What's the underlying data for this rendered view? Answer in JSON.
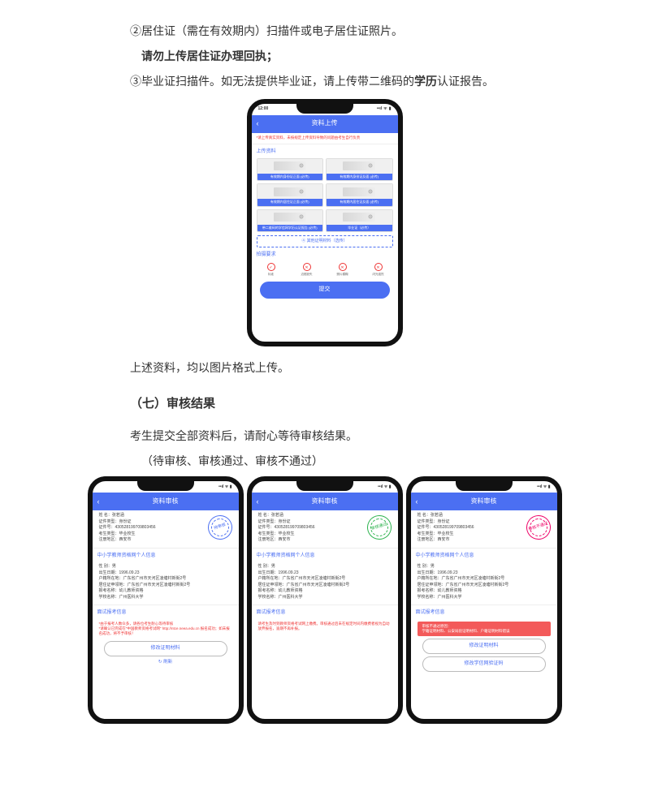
{
  "doc": {
    "line1_prefix": "②居住证（需在有效期内）扫描件或电子居住证照片。",
    "line2_bold": "请勿上传居住证办理回执；",
    "line3_a": "③毕业证扫描件。如无法提供毕业证，请上传带二维码的",
    "line3_b": "学历",
    "line3_c": "认证报告。",
    "after_phone": "上述资料，均以图片格式上传。",
    "heading7": "（七）审核结果",
    "line4": "考生提交全部资料后，请耐心等待审核结果。",
    "line5": "（待审核、审核通过、审核不通过）"
  },
  "upload_phone": {
    "time": "12:00",
    "title": "资料上传",
    "warn": "*请上传真实资料，未按规定上传资料导致的问题由考生自行负责",
    "sec1": "上传资料",
    "cells": [
      "有效期内身份证正面 (必传)",
      "有效期内身份证反面 (必传)",
      "有效期内居住证正面 (必传)",
      "有效期内居住证反面 (必传)",
      "带二维码的学信网学历认证报告 (必传)",
      "毕业证（必传）"
    ],
    "link": "④ 其他证明材料（选传）",
    "sec2": "拍摄要求",
    "icons": [
      "标准",
      "边框缺失",
      "照片模糊",
      "闪光强烈"
    ],
    "submit": "提交"
  },
  "review": {
    "title": "资料审核",
    "base_label_name": "姓    名：",
    "base_name": "张若涵",
    "base_label_idtype": "证件类型：",
    "idtype": "身份证",
    "base_label_idno": "证件号：",
    "idno": "430528199709803456",
    "base_label_extype": "考生类型：",
    "extype": "毕业校生",
    "base_label_region": "注册地区：",
    "region": "西安市",
    "sec_person": "中小学教师资格网个人信息",
    "gender_label": "性    别：",
    "gender": "男",
    "dob_label": "出生日期：",
    "dob": "1996.09.23",
    "hukou_label": "户籍所在地：",
    "hukou": "广东省广州市天河区凌塘村新街2号",
    "juzhu_label": "居住证申领地：",
    "juzhu": "广东省广州市天河区凌塘村新街2号",
    "baokao_label": "报考名称：",
    "baokao": "幼儿教师资格",
    "school_label": "学校名称：",
    "school": "广州医科大学",
    "sec_ms": "面试报考信息",
    "pending_note": "*由于报考人数众多，请各位考生耐心等待审核\n*请确认已完成在\"中国教师资格考试网\" http://ntce.neea.edu.cn 报名成功；如未报名成功，将不予审核！",
    "btn_modify": "修改证明材料",
    "refresh": "刷新",
    "pass_note": "请考生及时到教师资格考试网上缴费。审核通过后未在规定时间内缴费者视为自动放弃报名，逾期不再补报。",
    "fail_box_title": "审核不通过原因：",
    "fail_box_body": "    学籍证明材料、公安局验证明材料、户籍证明材料错误",
    "btn_modify2": "修改学信网验证码",
    "stamp_pending": "待审核",
    "stamp_pass": "审核通过",
    "stamp_fail": "审核不通过"
  },
  "colors": {
    "brand": "#4b6ff2",
    "danger": "#e33"
  }
}
